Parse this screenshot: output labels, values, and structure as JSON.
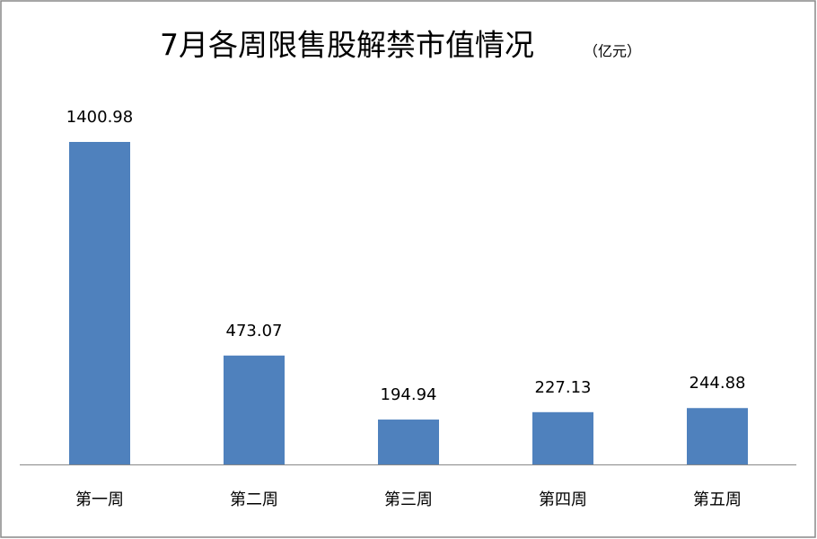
{
  "chart_data": {
    "type": "bar",
    "title": "7月各周限售股解禁市值情况",
    "subtitle": "（亿元）",
    "categories": [
      "第一周",
      "第二周",
      "第三周",
      "第四周",
      "第五周"
    ],
    "values": [
      1400.98,
      473.07,
      194.94,
      227.13,
      244.88
    ],
    "color": "#4f81bd"
  }
}
